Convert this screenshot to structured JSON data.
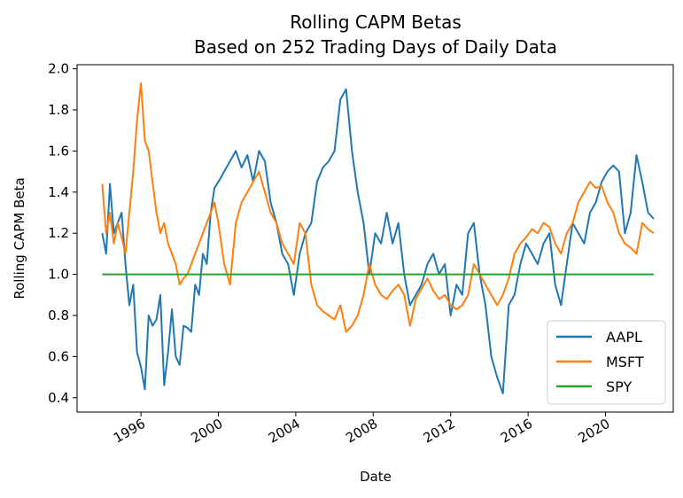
{
  "chart_data": {
    "type": "line",
    "title": "Rolling CAPM Betas",
    "subtitle": "Based on 252 Trading Days of  Daily Data",
    "xlabel": "Date",
    "ylabel": "Rolling CAPM Beta",
    "xlim": [
      1992.7,
      2023.5
    ],
    "ylim": [
      0.33,
      2.02
    ],
    "x_ticks": [
      1996,
      2000,
      2004,
      2008,
      2012,
      2016,
      2020
    ],
    "x_tick_labels": [
      "1996",
      "2000",
      "2004",
      "2008",
      "2012",
      "2016",
      "2020"
    ],
    "y_ticks": [
      0.4,
      0.6,
      0.8,
      1.0,
      1.2,
      1.4,
      1.6,
      1.8,
      2.0
    ],
    "y_tick_labels": [
      "0.4",
      "0.6",
      "0.8",
      "1.0",
      "1.2",
      "1.4",
      "1.6",
      "1.8",
      "2.0"
    ],
    "grid": false,
    "legend": "bottom-right",
    "series": [
      {
        "name": "AAPL",
        "color": "#1f77b4",
        "x": [
          1994.0,
          1994.2,
          1994.4,
          1994.6,
          1994.8,
          1995.0,
          1995.2,
          1995.4,
          1995.6,
          1995.8,
          1996.0,
          1996.2,
          1996.4,
          1996.6,
          1996.8,
          1997.0,
          1997.2,
          1997.4,
          1997.6,
          1997.8,
          1998.0,
          1998.2,
          1998.4,
          1998.6,
          1998.8,
          1999.0,
          1999.2,
          1999.4,
          1999.6,
          1999.8,
          2000.0,
          2000.3,
          2000.6,
          2000.9,
          2001.2,
          2001.5,
          2001.8,
          2002.1,
          2002.4,
          2002.7,
          2003.0,
          2003.3,
          2003.6,
          2003.9,
          2004.2,
          2004.5,
          2004.8,
          2005.1,
          2005.4,
          2005.7,
          2006.0,
          2006.3,
          2006.6,
          2006.9,
          2007.2,
          2007.5,
          2007.8,
          2008.1,
          2008.4,
          2008.7,
          2009.0,
          2009.3,
          2009.6,
          2009.9,
          2010.2,
          2010.5,
          2010.8,
          2011.1,
          2011.4,
          2011.7,
          2012.0,
          2012.3,
          2012.6,
          2012.9,
          2013.2,
          2013.5,
          2013.8,
          2014.1,
          2014.4,
          2014.7,
          2015.0,
          2015.3,
          2015.6,
          2015.9,
          2016.2,
          2016.5,
          2016.8,
          2017.1,
          2017.4,
          2017.7,
          2018.0,
          2018.3,
          2018.6,
          2018.9,
          2019.2,
          2019.5,
          2019.8,
          2020.1,
          2020.4,
          2020.7,
          2021.0,
          2021.3,
          2021.6,
          2021.9,
          2022.2,
          2022.5
        ],
        "values": [
          1.2,
          1.1,
          1.44,
          1.2,
          1.25,
          1.3,
          1.05,
          0.85,
          0.95,
          0.62,
          0.55,
          0.44,
          0.8,
          0.75,
          0.78,
          0.9,
          0.46,
          0.62,
          0.83,
          0.6,
          0.56,
          0.75,
          0.74,
          0.72,
          0.95,
          0.9,
          1.1,
          1.05,
          1.3,
          1.42,
          1.45,
          1.5,
          1.55,
          1.6,
          1.52,
          1.58,
          1.45,
          1.6,
          1.55,
          1.35,
          1.25,
          1.1,
          1.05,
          0.9,
          1.1,
          1.2,
          1.25,
          1.45,
          1.52,
          1.55,
          1.6,
          1.85,
          1.9,
          1.6,
          1.4,
          1.25,
          1.0,
          1.2,
          1.15,
          1.3,
          1.15,
          1.25,
          1.0,
          0.85,
          0.9,
          0.95,
          1.05,
          1.1,
          1.0,
          1.05,
          0.8,
          0.95,
          0.9,
          1.2,
          1.25,
          1.0,
          0.85,
          0.6,
          0.5,
          0.42,
          0.85,
          0.9,
          1.05,
          1.15,
          1.1,
          1.05,
          1.15,
          1.2,
          0.95,
          0.85,
          1.05,
          1.25,
          1.2,
          1.15,
          1.3,
          1.35,
          1.45,
          1.5,
          1.53,
          1.5,
          1.2,
          1.3,
          1.58,
          1.45,
          1.3,
          1.27
        ]
      },
      {
        "name": "MSFT",
        "color": "#ff7f0e",
        "x": [
          1994.0,
          1994.2,
          1994.4,
          1994.6,
          1994.8,
          1995.0,
          1995.2,
          1995.4,
          1995.6,
          1995.8,
          1996.0,
          1996.2,
          1996.4,
          1996.6,
          1996.8,
          1997.0,
          1997.2,
          1997.4,
          1997.6,
          1997.8,
          1998.0,
          1998.2,
          1998.4,
          1998.6,
          1998.8,
          1999.0,
          1999.2,
          1999.4,
          1999.6,
          1999.8,
          2000.0,
          2000.3,
          2000.6,
          2000.9,
          2001.2,
          2001.5,
          2001.8,
          2002.1,
          2002.4,
          2002.7,
          2003.0,
          2003.3,
          2003.6,
          2003.9,
          2004.2,
          2004.5,
          2004.8,
          2005.1,
          2005.4,
          2005.7,
          2006.0,
          2006.3,
          2006.6,
          2006.9,
          2007.2,
          2007.5,
          2007.8,
          2008.1,
          2008.4,
          2008.7,
          2009.0,
          2009.3,
          2009.6,
          2009.9,
          2010.2,
          2010.5,
          2010.8,
          2011.1,
          2011.4,
          2011.7,
          2012.0,
          2012.3,
          2012.6,
          2012.9,
          2013.2,
          2013.5,
          2013.8,
          2014.1,
          2014.4,
          2014.7,
          2015.0,
          2015.3,
          2015.6,
          2015.9,
          2016.2,
          2016.5,
          2016.8,
          2017.1,
          2017.4,
          2017.7,
          2018.0,
          2018.3,
          2018.6,
          2018.9,
          2019.2,
          2019.5,
          2019.8,
          2020.1,
          2020.4,
          2020.7,
          2021.0,
          2021.3,
          2021.6,
          2021.9,
          2022.2,
          2022.5
        ],
        "values": [
          1.44,
          1.2,
          1.3,
          1.15,
          1.25,
          1.18,
          1.1,
          1.3,
          1.5,
          1.75,
          1.93,
          1.65,
          1.6,
          1.45,
          1.3,
          1.2,
          1.25,
          1.15,
          1.1,
          1.05,
          0.95,
          0.98,
          1.0,
          1.05,
          1.1,
          1.15,
          1.2,
          1.25,
          1.3,
          1.35,
          1.25,
          1.05,
          0.95,
          1.25,
          1.35,
          1.4,
          1.45,
          1.5,
          1.4,
          1.3,
          1.25,
          1.15,
          1.1,
          1.05,
          1.25,
          1.2,
          0.95,
          0.85,
          0.82,
          0.8,
          0.78,
          0.85,
          0.72,
          0.75,
          0.8,
          0.9,
          1.05,
          0.95,
          0.9,
          0.88,
          0.92,
          0.95,
          0.9,
          0.75,
          0.88,
          0.93,
          0.98,
          0.92,
          0.88,
          0.9,
          0.85,
          0.83,
          0.85,
          0.9,
          1.05,
          1.0,
          0.95,
          0.9,
          0.85,
          0.9,
          0.98,
          1.1,
          1.15,
          1.18,
          1.22,
          1.2,
          1.25,
          1.23,
          1.15,
          1.1,
          1.2,
          1.25,
          1.35,
          1.4,
          1.45,
          1.42,
          1.43,
          1.35,
          1.3,
          1.2,
          1.15,
          1.13,
          1.1,
          1.25,
          1.22,
          1.2
        ]
      },
      {
        "name": "SPY",
        "color": "#2ca02c",
        "x": [
          1994.0,
          2022.5
        ],
        "values": [
          1.0,
          1.0
        ]
      }
    ]
  }
}
